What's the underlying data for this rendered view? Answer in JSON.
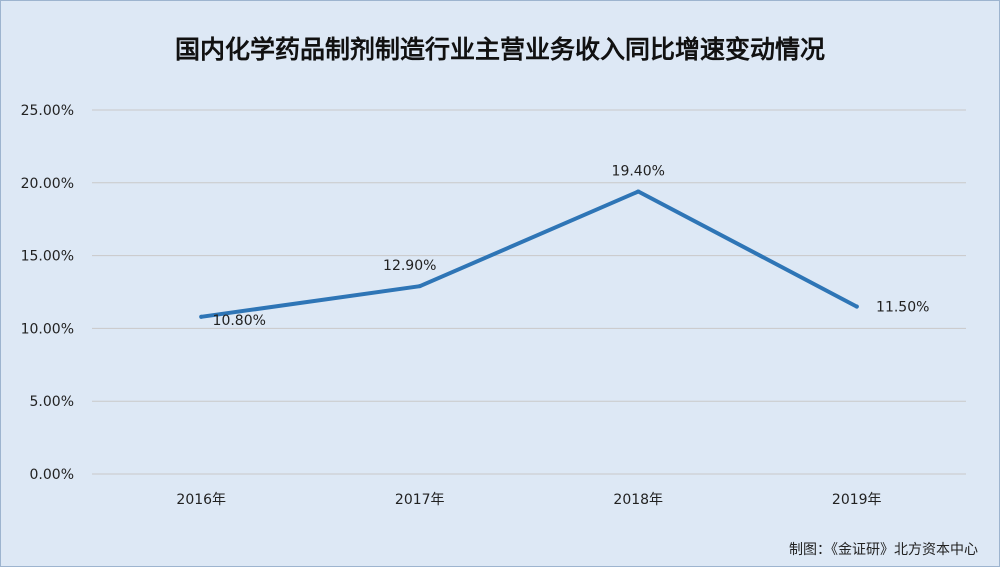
{
  "chart_data": {
    "type": "line",
    "title": "国内化学药品制剂制造行业主营业务收入同比增速变动情况",
    "categories": [
      "2016年",
      "2017年",
      "2018年",
      "2019年"
    ],
    "series": [
      {
        "values": [
          10.8,
          12.9,
          19.4,
          11.5
        ],
        "data_labels": [
          "10.80%",
          "12.90%",
          "19.40%",
          "11.50%"
        ]
      }
    ],
    "ylim": [
      0,
      25
    ],
    "yticks": [
      0,
      5,
      10,
      15,
      20,
      25
    ],
    "ytick_labels": [
      "0.00%",
      "5.00%",
      "10.00%",
      "15.00%",
      "20.00%",
      "25.00%"
    ],
    "grid": true,
    "line_color": "#2e75b6"
  },
  "footer": {
    "source": "制图：《金证研》北方资本中心"
  }
}
